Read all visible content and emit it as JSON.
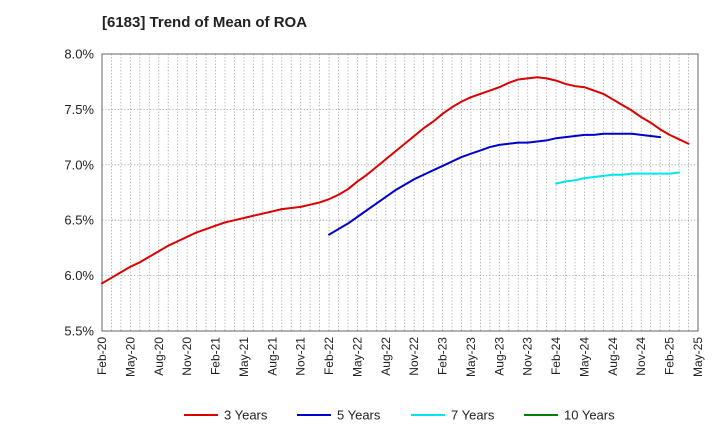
{
  "chart_data": {
    "type": "line",
    "title": "[6183]  Trend of Mean of ROA",
    "y_unit": "%",
    "ylim": [
      5.5,
      8.0
    ],
    "yticks": [
      "8.0%",
      "7.5%",
      "7.0%",
      "6.5%",
      "6.0%",
      "5.5%"
    ],
    "ytick_values": [
      8.0,
      7.5,
      7.0,
      6.5,
      6.0,
      5.5
    ],
    "x_labels": [
      "Feb-20",
      "May-20",
      "Aug-20",
      "Nov-20",
      "Feb-21",
      "May-21",
      "Aug-21",
      "Nov-21",
      "Feb-22",
      "May-22",
      "Aug-22",
      "Nov-22",
      "Feb-23",
      "May-23",
      "Aug-23",
      "Nov-23",
      "Feb-24",
      "May-24",
      "Aug-24",
      "Nov-24",
      "Feb-25",
      "May-25"
    ],
    "grid": true,
    "legend_position": "bottom",
    "series": [
      {
        "name": "3 Years",
        "color": "#dd0000",
        "start_month": "Feb-20",
        "values": [
          5.93,
          5.98,
          6.03,
          6.08,
          6.12,
          6.17,
          6.22,
          6.27,
          6.31,
          6.35,
          6.39,
          6.42,
          6.45,
          6.48,
          6.5,
          6.52,
          6.54,
          6.56,
          6.58,
          6.6,
          6.61,
          6.62,
          6.64,
          6.66,
          6.69,
          6.73,
          6.78,
          6.85,
          6.91,
          6.98,
          7.05,
          7.12,
          7.19,
          7.26,
          7.33,
          7.39,
          7.46,
          7.52,
          7.57,
          7.61,
          7.64,
          7.67,
          7.7,
          7.74,
          7.77,
          7.78,
          7.79,
          7.78,
          7.76,
          7.73,
          7.71,
          7.7,
          7.67,
          7.64,
          7.59,
          7.54,
          7.49,
          7.43,
          7.38,
          7.32,
          7.27,
          7.23,
          7.19
        ]
      },
      {
        "name": "5 Years",
        "color": "#0000cc",
        "start_month": "Feb-22",
        "values": [
          6.37,
          6.42,
          6.47,
          6.53,
          6.59,
          6.65,
          6.71,
          6.77,
          6.82,
          6.87,
          6.91,
          6.95,
          6.99,
          7.03,
          7.07,
          7.1,
          7.13,
          7.16,
          7.18,
          7.19,
          7.2,
          7.2,
          7.21,
          7.22,
          7.24,
          7.25,
          7.26,
          7.27,
          7.27,
          7.28,
          7.28,
          7.28,
          7.28,
          7.27,
          7.26,
          7.25
        ]
      },
      {
        "name": "7 Years",
        "color": "#00e5ee",
        "start_month": "Feb-24",
        "values": [
          6.83,
          6.85,
          6.86,
          6.88,
          6.89,
          6.9,
          6.91,
          6.91,
          6.92,
          6.92,
          6.92,
          6.92,
          6.92,
          6.93
        ]
      },
      {
        "name": "10 Years",
        "color": "#008000",
        "start_month": "Feb-25",
        "values": []
      }
    ]
  }
}
